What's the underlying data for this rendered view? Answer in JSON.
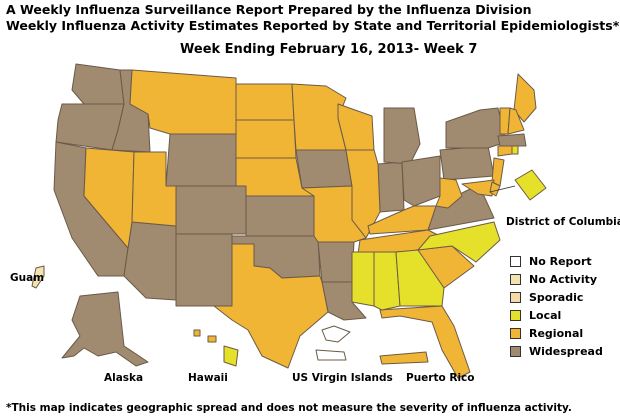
{
  "header": {
    "line1": "A Weekly Influenza Surveillance Report Prepared by the Influenza Division",
    "line2": "Weekly Influenza Activity Estimates Reported by State and Territorial Epidemiologists*",
    "week": "Week Ending February 16, 2013- Week 7"
  },
  "labels": {
    "dc": "District of Columbia",
    "guam": "Guam",
    "alaska": "Alaska",
    "hawaii": "Hawaii",
    "usvi": "US Virgin Islands",
    "puerto_rico": "Puerto Rico"
  },
  "legend": [
    {
      "label": "No Report",
      "color": "#ffffff"
    },
    {
      "label": "No Activity",
      "color": "#f3e3b0"
    },
    {
      "label": "Sporadic",
      "color": "#f6d9a6"
    },
    {
      "label": "Local",
      "color": "#e5e02a"
    },
    {
      "label": "Regional",
      "color": "#f0b535"
    },
    {
      "label": "Widespread",
      "color": "#a08a70"
    }
  ],
  "colors": {
    "widespread": "#a08a70",
    "regional": "#f0b535",
    "local": "#e5e02a",
    "no_activity": "#f3e3b0",
    "border": "#6b5a48"
  },
  "footnote": "*This map indicates geographic spread and does not measure the severity of influenza activity."
}
